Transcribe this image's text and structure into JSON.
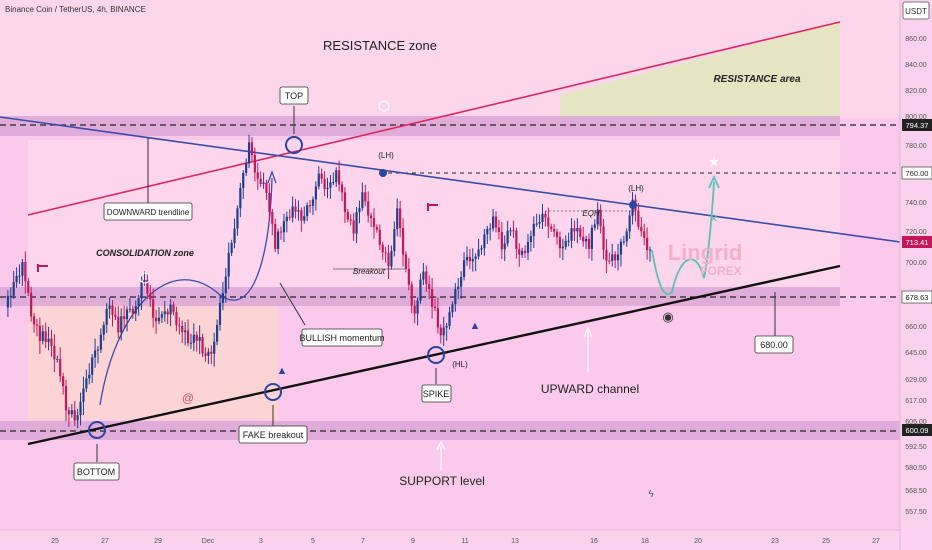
{
  "header": {
    "symbol": "Binance Coin / TetherUS, 4h, BINANCE",
    "currency": "USDT"
  },
  "axis": {
    "y_ticks": [
      "860.00",
      "840.00",
      "820.00",
      "800.00",
      "780.00",
      "760.00",
      "740.00",
      "720.00",
      "700.00",
      "680.00",
      "660.00",
      "645.00",
      "629.00",
      "617.00",
      "605.00",
      "592.50",
      "580.50",
      "568.50",
      "557.50"
    ],
    "x_ticks": [
      "25",
      "27",
      "29",
      "Dec",
      "3",
      "5",
      "7",
      "9",
      "11",
      "13",
      "16",
      "18",
      "20",
      "23",
      "25",
      "27"
    ]
  },
  "price_labels": {
    "resistance": "794.37",
    "target": "760.00",
    "current": "713.41",
    "support_mid": "678.63",
    "support": "600.09",
    "callout": "680.00"
  },
  "annotations": {
    "resistance_zone": "RESISTANCE zone",
    "resistance_area": "RESISTANCE area",
    "consolidation_zone": "CONSOLIDATION zone",
    "downward_trendline": "DOWNWARD trendline",
    "top": "TOP",
    "bottom": "BOTTOM",
    "fake_breakout": "FAKE breakout",
    "bullish_momentum": "BULLISH momentum",
    "spike": "SPIKE",
    "upward_channel": "UPWARD channel",
    "support_level": "SUPPORT level",
    "breakout": "Breakout",
    "lh1": "(LH)",
    "lh2": "(LH)",
    "hl": "(HL)",
    "eqh": "EQH"
  },
  "watermark": {
    "line1": "Lingrid",
    "line2": "FOREX"
  },
  "colors": {
    "background": "#fbc9ec",
    "band": "#dca9d5",
    "resistance_line": "#e0245e",
    "downtrend_line": "#3c4ba8",
    "support_line": "#111111",
    "candle_up": "#1e3f8c",
    "candle_down": "#c2185b",
    "projection": "#56c3b3"
  },
  "chart_data": {
    "type": "candlestick",
    "title": "Binance Coin / TetherUS, 4h, BINANCE",
    "ylim": [
      550,
      875
    ],
    "x_categories": [
      "25",
      "27",
      "29",
      "Dec",
      "3",
      "5",
      "7",
      "9",
      "11",
      "13",
      "16",
      "18",
      "20",
      "23",
      "25",
      "27"
    ],
    "levels": [
      {
        "price": 794.37,
        "label": "794.37"
      },
      {
        "price": 760.0,
        "label": "760.00"
      },
      {
        "price": 713.41,
        "label": "713.41"
      },
      {
        "price": 678.63,
        "label": "678.63"
      },
      {
        "price": 600.09,
        "label": "600.09"
      }
    ],
    "price_path": [
      672,
      686,
      700,
      668,
      655,
      650,
      640,
      612,
      608,
      620,
      640,
      655,
      675,
      660,
      668,
      672,
      690,
      668,
      664,
      672,
      660,
      652,
      655,
      640,
      650,
      682,
      715,
      746,
      780,
      756,
      748,
      712,
      724,
      736,
      728,
      740,
      756,
      748,
      762,
      735,
      722,
      744,
      728,
      712,
      700,
      732,
      694,
      668,
      696,
      676,
      652,
      668,
      686,
      706,
      700,
      716,
      730,
      710,
      724,
      702,
      712,
      726,
      732,
      716,
      708,
      722,
      718,
      712,
      732,
      700,
      702,
      716,
      738,
      718,
      708
    ]
  }
}
